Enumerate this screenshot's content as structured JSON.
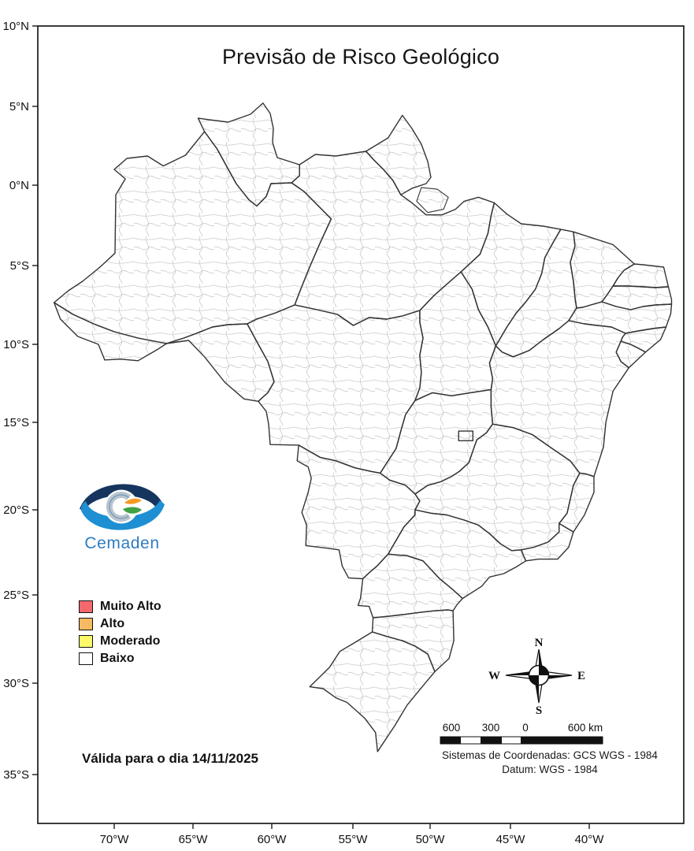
{
  "title": "Previsão de Risco Geológico",
  "axes": {
    "lat_labels": [
      "10°N",
      "5°N",
      "0°N",
      "5°S",
      "10°S",
      "15°S",
      "20°S",
      "25°S",
      "30°S",
      "35°S"
    ],
    "lon_labels": [
      "70°W",
      "65°W",
      "60°W",
      "55°W",
      "50°W",
      "45°W",
      "40°W"
    ]
  },
  "logo": {
    "text": "Cemaden"
  },
  "legend": {
    "items": [
      {
        "label": "Muito Alto",
        "color": "#F4696D"
      },
      {
        "label": "Alto",
        "color": "#F6BA62"
      },
      {
        "label": "Moderado",
        "color": "#F9F969"
      },
      {
        "label": "Baixo",
        "color": "#FFFFFF"
      }
    ]
  },
  "validity": {
    "text": "Válida para o dia 14/11/2025"
  },
  "compass": {
    "north": "N",
    "south": "S",
    "east": "E",
    "west": "W"
  },
  "scalebar": {
    "labels": [
      "600",
      "300",
      "0",
      "600 km"
    ]
  },
  "coordinates_info": {
    "line1": "Sistemas de Coordenadas: GCS WGS - 1984",
    "line2": "Datum: WGS - 1984"
  },
  "map_colors": {
    "state_border": "#333333",
    "municipality_border": "#c9c9c9",
    "fill": "#ffffff"
  }
}
